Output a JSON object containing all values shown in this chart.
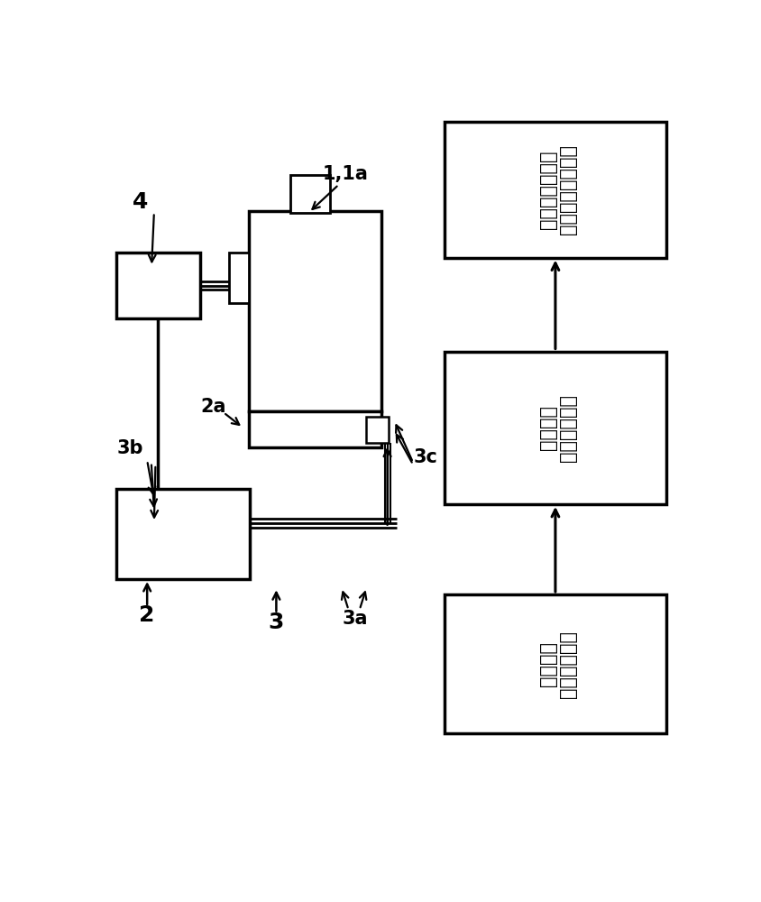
{
  "bg_color": "#ffffff",
  "lc": "#000000",
  "box1_t1": "在失效安全控制器",
  "box1_t2": "中对速度的监测",
  "box2_t1": "在变换器中的",
  "box2_t2": "斜坡计算",
  "box3_t1": "使用无线电指",
  "box3_t2": "定期望値",
  "l4": "4",
  "l2a": "2a",
  "l3b": "3b",
  "l2": "2",
  "l3": "3",
  "l3a": "3a",
  "l11a": "1,1a",
  "l3c": "3c",
  "fig_w": 8.45,
  "fig_h": 10.0
}
